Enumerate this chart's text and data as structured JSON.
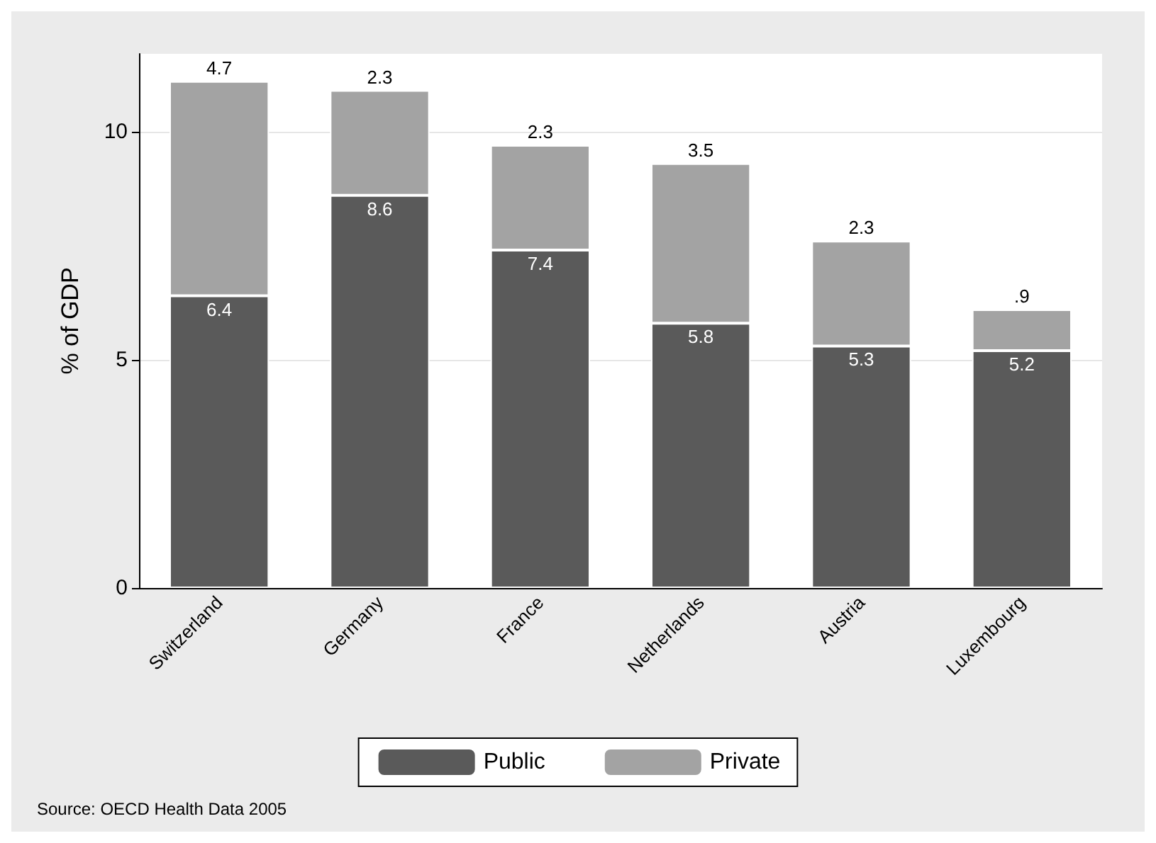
{
  "chart_data": {
    "type": "bar",
    "stacked": true,
    "ylabel": "% of GDP",
    "categories": [
      "Switzerland",
      "Germany",
      "France",
      "Netherlands",
      "Austria",
      "Luxembourg"
    ],
    "series": [
      {
        "name": "Public",
        "color": "#5a5a5a",
        "values": [
          6.4,
          8.6,
          7.4,
          5.8,
          5.3,
          5.2
        ],
        "value_labels": [
          "6.4",
          "8.6",
          "7.4",
          "5.8",
          "5.3",
          "5.2"
        ]
      },
      {
        "name": "Private",
        "color": "#a3a3a3",
        "values": [
          4.7,
          2.3,
          2.3,
          3.5,
          2.3,
          0.9
        ],
        "value_labels": [
          "4.7",
          "2.3",
          "2.3",
          "3.5",
          "2.3",
          ".9"
        ]
      }
    ],
    "ylim": [
      0,
      11.7
    ],
    "yticks": [
      0,
      5,
      10
    ],
    "grid": "y",
    "legend": "bottom",
    "annotations": [
      "Source: OECD Health Data 2005"
    ]
  }
}
